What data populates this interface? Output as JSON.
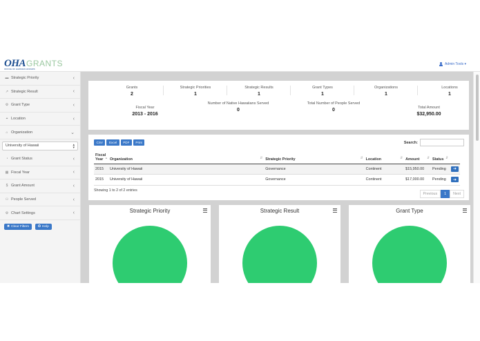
{
  "header": {
    "logo_main": "OHA",
    "logo_grants": "GRANTS",
    "logo_sub": "OFFICE OF HAWAIIAN AFFAIRS",
    "admin_label": "Admin Tools ▾"
  },
  "sidebar": {
    "items": [
      {
        "label": "Strategic Priority",
        "icon": "▬",
        "chev": "‹"
      },
      {
        "label": "Strategic Result",
        "icon": "↗",
        "chev": "‹"
      },
      {
        "label": "Grant Type",
        "icon": "⚙",
        "chev": "‹"
      },
      {
        "label": "Location",
        "icon": "⌖",
        "chev": "‹"
      },
      {
        "label": "Organization",
        "icon": "⌂",
        "chev": "⌄"
      },
      {
        "label": "Grant Status",
        "icon": "◔",
        "chev": "‹"
      },
      {
        "label": "Fiscal Year",
        "icon": "▦",
        "chev": "‹"
      },
      {
        "label": "Grant Amount",
        "icon": "$",
        "chev": "‹"
      },
      {
        "label": "People Served",
        "icon": "⚇",
        "chev": "‹"
      },
      {
        "label": "Chart Settings",
        "icon": "⚙",
        "chev": "‹"
      }
    ],
    "organization_select": "University of Hawaii",
    "clear_filters": "Clear Filters",
    "help": "Help"
  },
  "stats": {
    "row1": [
      {
        "title": "Grants",
        "value": "2"
      },
      {
        "title": "Strategic Priorities",
        "value": "1"
      },
      {
        "title": "Strategic Results",
        "value": "1"
      },
      {
        "title": "Grant Types",
        "value": "1"
      },
      {
        "title": "Organizations",
        "value": "1"
      },
      {
        "title": "Locations",
        "value": "1"
      }
    ],
    "row2": [
      {
        "title": "Fiscal Year",
        "value": "2013 - 2016"
      },
      {
        "title": "Number of Native Hawaiians Served",
        "value": "0"
      },
      {
        "title": "Total Number of People Served",
        "value": "0"
      },
      {
        "title": "Total Amount",
        "value": "$32,950.00"
      }
    ]
  },
  "table": {
    "export_buttons": [
      "CSV",
      "Excel",
      "PDF",
      "Print"
    ],
    "search_label": "Search:",
    "columns": [
      "Fiscal Year",
      "Organization",
      "Strategic Priority",
      "Location",
      "Amount",
      "Status"
    ],
    "rows": [
      [
        "2015",
        "University of Hawaii",
        "Governance",
        "Continent",
        "$15,950.00",
        "Pending"
      ],
      [
        "2015",
        "University of Hawaii",
        "Governance",
        "Continent",
        "$17,000.00",
        "Pending"
      ]
    ],
    "info": "Showing 1 to 2 of 2 entries",
    "pager": {
      "prev": "Previous",
      "page": "1",
      "next": "Next"
    }
  },
  "charts": [
    {
      "title": "Strategic Priority"
    },
    {
      "title": "Strategic Result"
    },
    {
      "title": "Grant Type"
    }
  ],
  "colors": {
    "pie": "#2ecc71",
    "accent": "#3a78c8"
  }
}
